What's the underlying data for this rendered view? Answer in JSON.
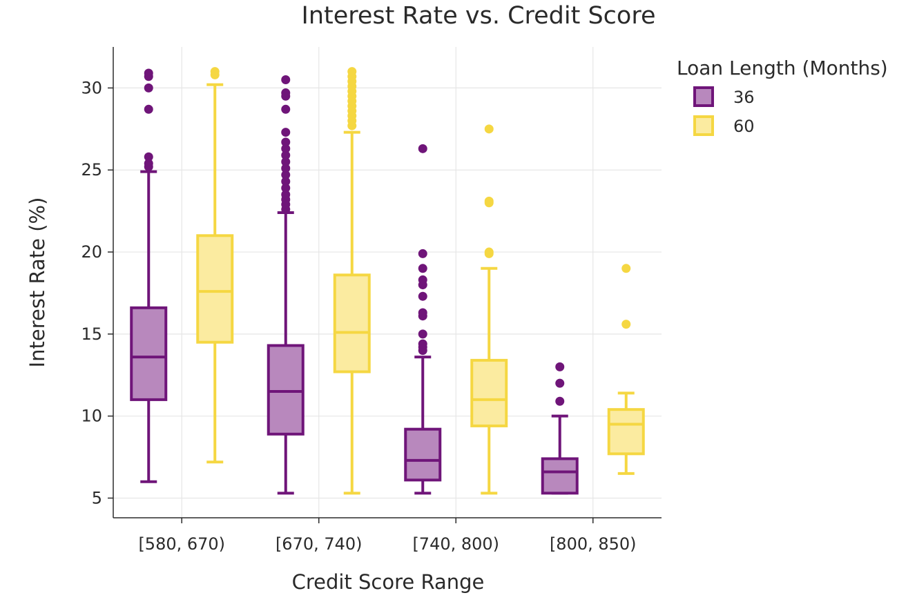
{
  "chart_data": {
    "type": "box",
    "title": "Interest Rate vs. Credit Score",
    "xlabel": "Credit Score Range",
    "ylabel": "Interest Rate (%)",
    "ylim": [
      3.8,
      32.5
    ],
    "yticks": [
      5,
      10,
      15,
      20,
      25,
      30
    ],
    "categories": [
      "[580, 670)",
      "[670, 740)",
      "[740, 800)",
      "[800, 850)"
    ],
    "grid": true,
    "legend": {
      "title": "Loan Length (Months)",
      "placement": "top-right"
    },
    "series": [
      {
        "name": "36",
        "color": "#6f1579",
        "fill": "#b888bd",
        "boxes": [
          {
            "category": "[580, 670)",
            "lowerfence": 6.0,
            "q1": 11.0,
            "median": 13.6,
            "q3": 16.6,
            "upperfence": 24.9,
            "outliers": [
              25.2,
              25.4,
              25.8,
              28.7,
              30.0,
              30.7,
              30.9
            ]
          },
          {
            "category": "[670, 740)",
            "lowerfence": 5.3,
            "q1": 8.9,
            "median": 11.5,
            "q3": 14.3,
            "upperfence": 22.4,
            "outliers": [
              22.6,
              22.9,
              23.2,
              23.5,
              23.9,
              24.3,
              24.7,
              25.1,
              25.5,
              25.9,
              26.3,
              26.7,
              27.3,
              28.7,
              29.5,
              29.7,
              30.5
            ]
          },
          {
            "category": "[740, 800)",
            "lowerfence": 5.3,
            "q1": 6.1,
            "median": 7.3,
            "q3": 9.2,
            "upperfence": 13.6,
            "outliers": [
              14.0,
              14.2,
              14.4,
              15.0,
              16.1,
              16.3,
              17.3,
              18.0,
              18.3,
              19.0,
              19.9,
              26.3
            ]
          },
          {
            "category": "[800, 850)",
            "lowerfence": 5.3,
            "q1": 5.3,
            "median": 6.6,
            "q3": 7.4,
            "upperfence": 10.0,
            "outliers": [
              10.9,
              12.0,
              13.0
            ]
          }
        ]
      },
      {
        "name": "60",
        "color": "#f5d742",
        "fill": "#fbeba0",
        "boxes": [
          {
            "category": "[580, 670)",
            "lowerfence": 7.2,
            "q1": 14.5,
            "median": 17.6,
            "q3": 21.0,
            "upperfence": 30.2,
            "outliers": [
              30.8,
              31.0
            ]
          },
          {
            "category": "[670, 740)",
            "lowerfence": 5.3,
            "q1": 12.7,
            "median": 15.1,
            "q3": 18.6,
            "upperfence": 27.3,
            "outliers": [
              27.7,
              28.0,
              28.3,
              28.6,
              28.9,
              29.2,
              29.5,
              29.8,
              30.1,
              30.4,
              30.7,
              31.0
            ]
          },
          {
            "category": "[740, 800)",
            "lowerfence": 5.3,
            "q1": 9.4,
            "median": 11.0,
            "q3": 13.4,
            "upperfence": 19.0,
            "outliers": [
              19.9,
              20.0,
              23.0,
              23.1,
              27.5
            ]
          },
          {
            "category": "[800, 850)",
            "lowerfence": 6.5,
            "q1": 7.7,
            "median": 9.5,
            "q3": 10.4,
            "upperfence": 11.4,
            "outliers": [
              15.6,
              19.0
            ]
          }
        ]
      }
    ]
  }
}
